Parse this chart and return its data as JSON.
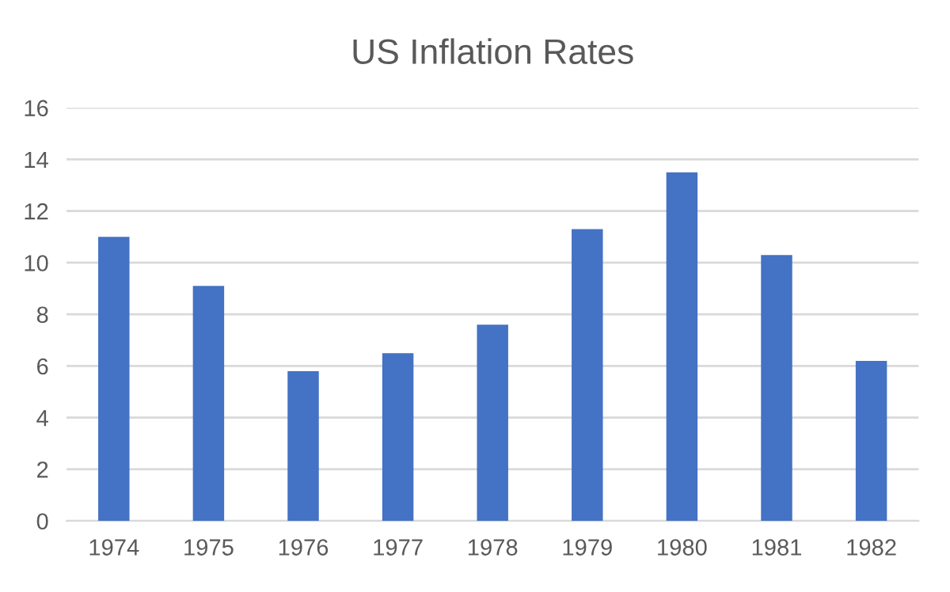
{
  "chart_data": {
    "type": "bar",
    "title": "US Inflation Rates",
    "categories": [
      "1974",
      "1975",
      "1976",
      "1977",
      "1978",
      "1979",
      "1980",
      "1981",
      "1982"
    ],
    "values": [
      11.0,
      9.1,
      5.8,
      6.5,
      7.6,
      11.3,
      13.5,
      10.3,
      6.2
    ],
    "color": "#4472c4",
    "ylim": [
      0,
      16
    ],
    "yticks": [
      0,
      2,
      4,
      6,
      8,
      10,
      12,
      14,
      16
    ],
    "grid": "y",
    "legend": false
  }
}
